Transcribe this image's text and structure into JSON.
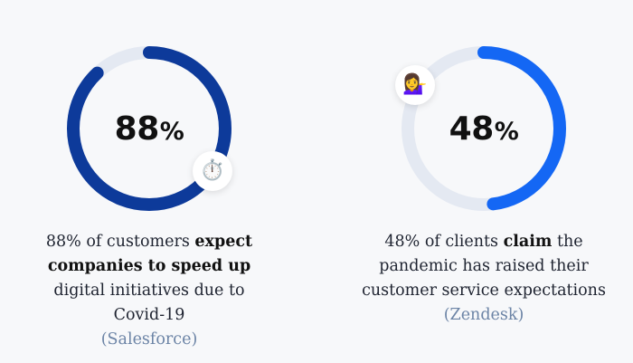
{
  "stats": [
    {
      "value": "88",
      "percent_sign": "%",
      "progress_fraction": 0.88,
      "ring_color": "#0d3a9a",
      "track_color": "#e4e9f2",
      "emoji_name": "stopwatch-icon",
      "emoji": "⏱️",
      "caption": {
        "lead": "88% of customers ",
        "bold": "expect companies to speed up",
        "tail": " digital initiatives due to Covid-19",
        "source": "(Salesforce)"
      }
    },
    {
      "value": "48",
      "percent_sign": "%",
      "progress_fraction": 0.48,
      "ring_color": "#1467f4",
      "track_color": "#e4e9f2",
      "emoji_name": "person-tipping-hand-icon",
      "emoji": "💁‍♀️",
      "caption": {
        "lead": "48% of clients ",
        "bold": "claim",
        "tail": " the pandemic has raised their customer service expectations",
        "source": "(Zendesk)"
      }
    }
  ]
}
